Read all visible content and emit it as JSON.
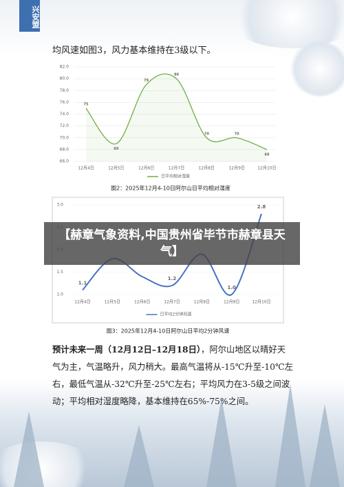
{
  "badge": "兴安盟",
  "intro": "均风速如图3，风力基本维持在3级以下。",
  "chart_data": [
    {
      "type": "line",
      "legend": "日平均相对湿度",
      "caption": "图2：2025年12月4-10日阿尔山日平均相对湿度",
      "categories": [
        "12月4日",
        "12月5日",
        "12月6日",
        "12月7日",
        "12月8日",
        "12月9日",
        "12月10日"
      ],
      "values": [
        75,
        69,
        79,
        80,
        70,
        70,
        68
      ],
      "color": "#70ad47",
      "ylim": [
        66,
        82
      ],
      "yticks": [
        {
          "value": 66,
          "label": "66.0"
        },
        {
          "value": 68,
          "label": "68.0"
        },
        {
          "value": 70,
          "label": "70.0"
        },
        {
          "value": 72,
          "label": "72.0"
        },
        {
          "value": 74,
          "label": "74.0"
        },
        {
          "value": 76,
          "label": "76.0"
        },
        {
          "value": 78,
          "label": "78.0"
        },
        {
          "value": 80,
          "label": "80.0"
        },
        {
          "value": 82,
          "label": "82.0"
        }
      ],
      "grid": true
    },
    {
      "type": "line",
      "legend": "日平均2分钟风速",
      "caption": "图3：2025年12月4-10日阿尔山日平均2分钟风速",
      "categories": [
        "12月4日",
        "12月5日",
        "12月6日",
        "12月7日",
        "12月8日",
        "12月9日",
        "12月10日"
      ],
      "values": [
        1.1,
        1.8,
        1.4,
        1.2,
        1.9,
        1.0,
        2.8
      ],
      "value_labels": [
        "1.1",
        null,
        null,
        "1.2",
        null,
        "1.0",
        "2.8"
      ],
      "color": "#4472c4",
      "ylim": [
        1,
        3
      ],
      "yticks": [
        {
          "value": 1,
          "label": "1.0"
        },
        1.5,
        {
          "value": 2,
          "label": "2.0"
        },
        2.5,
        {
          "value": 3,
          "label": "3.0"
        }
      ],
      "grid": true
    }
  ],
  "paragraph": {
    "lead": "预计未来一周（12月12日–12月18日）",
    "body": "，阿尔山地区以晴好天气为主，气温略升，风力稍大。最高气温将从-15℃升至-10℃左右，最低气温从-32℃升至-25℃左右；平均风力在3-5级之间波动；平均相对湿度略降，基本维持在65%-75%之间。"
  },
  "banner": "【赫章气象资料,中国贵州省毕节市赫章县天气】"
}
